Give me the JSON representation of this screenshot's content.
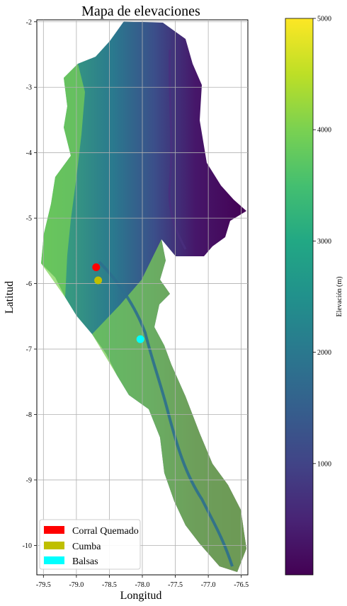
{
  "title": "Mapa de elevaciones",
  "xlabel": "Longitud",
  "ylabel": "Latitud",
  "colorbar": {
    "label": "Elevación (m)",
    "min": 0,
    "max": 5000,
    "ticks": [
      "1000",
      "2000",
      "3000",
      "4000",
      "5000"
    ],
    "colormap": "viridis"
  },
  "axes": {
    "xlim": [
      -79.6,
      -76.4
    ],
    "ylim": [
      -10.45,
      -1.97
    ],
    "xticks": [
      "-79.5",
      "-79.0",
      "-78.5",
      "-78.0",
      "-77.5",
      "-77.0",
      "-76.5"
    ],
    "yticks": [
      "-2",
      "-3",
      "-4",
      "-5",
      "-6",
      "-7",
      "-8",
      "-9",
      "-10"
    ],
    "grid": true
  },
  "chart_data": {
    "type": "scatter",
    "title": "Mapa de elevaciones",
    "xlabel": "Longitud",
    "ylabel": "Latitud",
    "series": [
      {
        "name": "Corral Quemado",
        "color": "#ff0000",
        "x": [
          -78.7
        ],
        "y": [
          -5.75
        ]
      },
      {
        "name": "Cumba",
        "color": "#bfbf00",
        "x": [
          -78.67
        ],
        "y": [
          -5.95
        ]
      },
      {
        "name": "Balsas",
        "color": "#00ffff",
        "x": [
          -78.03
        ],
        "y": [
          -6.85
        ]
      }
    ],
    "legend_position": "lower-left"
  },
  "legend": {
    "items": [
      {
        "label": "Corral Quemado",
        "color": "#ff0000"
      },
      {
        "label": "Cumba",
        "color": "#bfbf00"
      },
      {
        "label": "Balsas",
        "color": "#00ffff"
      }
    ]
  }
}
